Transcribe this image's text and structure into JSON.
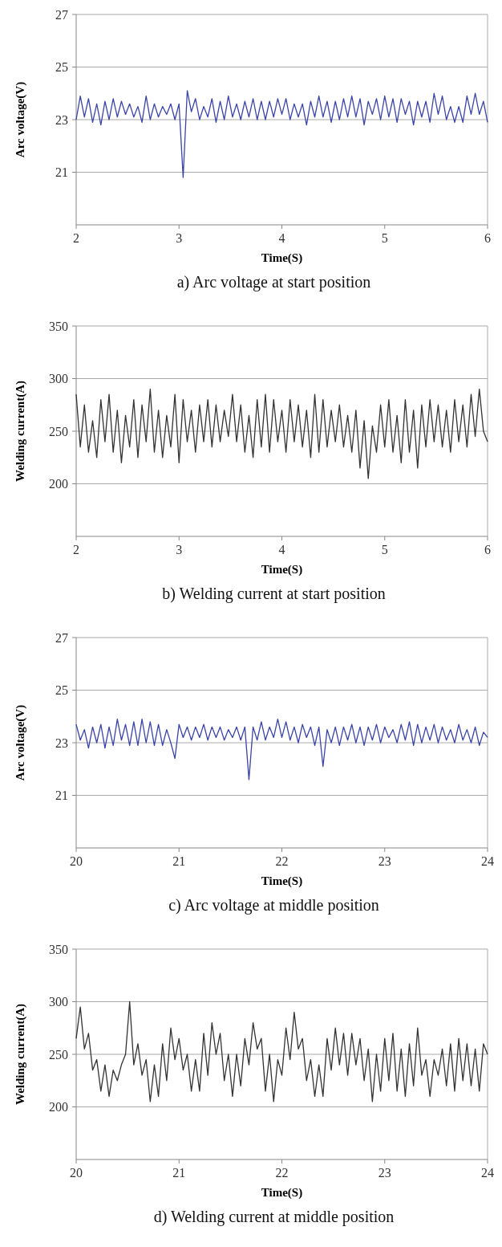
{
  "chart_data": [
    {
      "type": "line",
      "title": "a) Arc voltage at start position",
      "xlabel": "Time(S)",
      "ylabel": "Arc voltage(V)",
      "xlim": [
        2,
        6
      ],
      "xticks": [
        2,
        3,
        4,
        5,
        6
      ],
      "ylim": [
        19,
        27
      ],
      "yticks": [
        21,
        23,
        25,
        27
      ],
      "grid": "y",
      "marker": "none",
      "line_style": "solid",
      "x": [
        2,
        2.04,
        2.08,
        2.12,
        2.16,
        2.2,
        2.24,
        2.28,
        2.32,
        2.36,
        2.4,
        2.44,
        2.48,
        2.52,
        2.56,
        2.6,
        2.64,
        2.68,
        2.72,
        2.76,
        2.8,
        2.84,
        2.88,
        2.92,
        2.96,
        3,
        3.04,
        3.08,
        3.12,
        3.16,
        3.2,
        3.24,
        3.28,
        3.32,
        3.36,
        3.4,
        3.44,
        3.48,
        3.52,
        3.56,
        3.6,
        3.64,
        3.68,
        3.72,
        3.76,
        3.8,
        3.84,
        3.88,
        3.92,
        3.96,
        4,
        4.04,
        4.08,
        4.12,
        4.16,
        4.2,
        4.24,
        4.28,
        4.32,
        4.36,
        4.4,
        4.44,
        4.48,
        4.52,
        4.56,
        4.6,
        4.64,
        4.68,
        4.72,
        4.76,
        4.8,
        4.84,
        4.88,
        4.92,
        4.96,
        5,
        5.04,
        5.08,
        5.12,
        5.16,
        5.2,
        5.24,
        5.28,
        5.32,
        5.36,
        5.4,
        5.44,
        5.48,
        5.52,
        5.56,
        5.6,
        5.64,
        5.68,
        5.72,
        5.76,
        5.8,
        5.84,
        5.88,
        5.92,
        5.96,
        6
      ],
      "series": [
        {
          "color": "#3a44a8",
          "values": [
            23.0,
            23.9,
            23.1,
            23.8,
            22.9,
            23.6,
            22.8,
            23.7,
            23.0,
            23.8,
            23.1,
            23.7,
            23.2,
            23.6,
            23.1,
            23.5,
            22.9,
            23.9,
            23.0,
            23.6,
            23.1,
            23.5,
            23.2,
            23.6,
            23.0,
            23.6,
            20.8,
            24.1,
            23.3,
            23.8,
            23.0,
            23.5,
            23.1,
            23.8,
            22.9,
            23.7,
            23.0,
            23.9,
            23.1,
            23.6,
            23.0,
            23.7,
            23.1,
            23.8,
            23.0,
            23.7,
            23.0,
            23.7,
            23.1,
            23.8,
            23.2,
            23.8,
            23.0,
            23.6,
            23.1,
            23.6,
            22.8,
            23.7,
            23.1,
            23.9,
            23.1,
            23.7,
            22.9,
            23.7,
            23.0,
            23.8,
            23.1,
            23.9,
            23.1,
            23.8,
            22.8,
            23.7,
            23.2,
            23.8,
            23.0,
            23.9,
            23.1,
            23.8,
            22.9,
            23.8,
            23.2,
            23.7,
            22.8,
            23.7,
            23.1,
            23.7,
            22.9,
            24.0,
            23.2,
            23.9,
            23.0,
            23.5,
            22.9,
            23.5,
            22.9,
            23.9,
            23.2,
            24.0,
            23.2,
            23.7,
            22.9
          ]
        }
      ]
    },
    {
      "type": "line",
      "title": "b) Welding current at start position",
      "xlabel": "Time(S)",
      "ylabel": "Welding current(A)",
      "xlim": [
        2,
        6
      ],
      "xticks": [
        2,
        3,
        4,
        5,
        6
      ],
      "ylim": [
        150,
        350
      ],
      "yticks": [
        200,
        250,
        300,
        350
      ],
      "grid": "y",
      "marker": "none",
      "line_style": "solid",
      "x": [
        2,
        2.04,
        2.08,
        2.12,
        2.16,
        2.2,
        2.24,
        2.28,
        2.32,
        2.36,
        2.4,
        2.44,
        2.48,
        2.52,
        2.56,
        2.6,
        2.64,
        2.68,
        2.72,
        2.76,
        2.8,
        2.84,
        2.88,
        2.92,
        2.96,
        3,
        3.04,
        3.08,
        3.12,
        3.16,
        3.2,
        3.24,
        3.28,
        3.32,
        3.36,
        3.4,
        3.44,
        3.48,
        3.52,
        3.56,
        3.6,
        3.64,
        3.68,
        3.72,
        3.76,
        3.8,
        3.84,
        3.88,
        3.92,
        3.96,
        4,
        4.04,
        4.08,
        4.12,
        4.16,
        4.2,
        4.24,
        4.28,
        4.32,
        4.36,
        4.4,
        4.44,
        4.48,
        4.52,
        4.56,
        4.6,
        4.64,
        4.68,
        4.72,
        4.76,
        4.8,
        4.84,
        4.88,
        4.92,
        4.96,
        5,
        5.04,
        5.08,
        5.12,
        5.16,
        5.2,
        5.24,
        5.28,
        5.32,
        5.36,
        5.4,
        5.44,
        5.48,
        5.52,
        5.56,
        5.6,
        5.64,
        5.68,
        5.72,
        5.76,
        5.8,
        5.84,
        5.88,
        5.92,
        5.96,
        6
      ],
      "series": [
        {
          "color": "#333333",
          "values": [
            285,
            235,
            275,
            230,
            260,
            225,
            280,
            240,
            285,
            230,
            270,
            220,
            265,
            235,
            280,
            225,
            275,
            240,
            290,
            230,
            270,
            225,
            265,
            235,
            285,
            220,
            280,
            240,
            270,
            230,
            275,
            240,
            280,
            235,
            275,
            240,
            270,
            245,
            285,
            240,
            275,
            230,
            265,
            225,
            280,
            235,
            285,
            230,
            280,
            240,
            270,
            230,
            280,
            240,
            275,
            235,
            270,
            225,
            285,
            230,
            280,
            235,
            270,
            240,
            275,
            235,
            265,
            230,
            270,
            215,
            260,
            205,
            255,
            230,
            275,
            235,
            280,
            230,
            265,
            220,
            280,
            230,
            270,
            215,
            275,
            235,
            280,
            240,
            275,
            235,
            270,
            230,
            280,
            240,
            275,
            235,
            285,
            245,
            290,
            250,
            240
          ]
        }
      ]
    },
    {
      "type": "line",
      "title": "c) Arc voltage at middle position",
      "xlabel": "Time(S)",
      "ylabel": "Arc voltage(V)",
      "xlim": [
        20,
        24
      ],
      "xticks": [
        20,
        21,
        22,
        23,
        24
      ],
      "ylim": [
        19,
        27
      ],
      "yticks": [
        21,
        23,
        25,
        27
      ],
      "grid": "y",
      "marker": "none",
      "line_style": "solid",
      "x": [
        20,
        20.04,
        20.08,
        20.12,
        20.16,
        20.2,
        20.24,
        20.28,
        20.32,
        20.36,
        20.4,
        20.44,
        20.48,
        20.52,
        20.56,
        20.6,
        20.64,
        20.68,
        20.72,
        20.76,
        20.8,
        20.84,
        20.88,
        20.92,
        20.96,
        21,
        21.04,
        21.08,
        21.12,
        21.16,
        21.2,
        21.24,
        21.28,
        21.32,
        21.36,
        21.4,
        21.44,
        21.48,
        21.52,
        21.56,
        21.6,
        21.64,
        21.68,
        21.72,
        21.76,
        21.8,
        21.84,
        21.88,
        21.92,
        21.96,
        22,
        22.04,
        22.08,
        22.12,
        22.16,
        22.2,
        22.24,
        22.28,
        22.32,
        22.36,
        22.4,
        22.44,
        22.48,
        22.52,
        22.56,
        22.6,
        22.64,
        22.68,
        22.72,
        22.76,
        22.8,
        22.84,
        22.88,
        22.92,
        22.96,
        23,
        23.04,
        23.08,
        23.12,
        23.16,
        23.2,
        23.24,
        23.28,
        23.32,
        23.36,
        23.4,
        23.44,
        23.48,
        23.52,
        23.56,
        23.6,
        23.64,
        23.68,
        23.72,
        23.76,
        23.8,
        23.84,
        23.88,
        23.92,
        23.96,
        24
      ],
      "series": [
        {
          "color": "#3a44a8",
          "values": [
            23.7,
            23.1,
            23.5,
            22.8,
            23.6,
            23.0,
            23.7,
            22.8,
            23.6,
            22.9,
            23.9,
            23.1,
            23.7,
            22.9,
            23.8,
            22.9,
            23.9,
            23.0,
            23.8,
            22.9,
            23.7,
            22.9,
            23.5,
            23.0,
            22.4,
            23.7,
            23.2,
            23.6,
            23.1,
            23.6,
            23.2,
            23.7,
            23.1,
            23.6,
            23.2,
            23.6,
            23.1,
            23.5,
            23.2,
            23.6,
            23.1,
            23.6,
            21.6,
            23.6,
            23.1,
            23.8,
            23.1,
            23.6,
            23.2,
            23.9,
            23.2,
            23.8,
            23.1,
            23.6,
            23.0,
            23.7,
            23.2,
            23.6,
            22.9,
            23.6,
            22.1,
            23.5,
            23.0,
            23.6,
            22.9,
            23.6,
            23.1,
            23.7,
            23.0,
            23.6,
            22.9,
            23.6,
            23.1,
            23.7,
            23.0,
            23.6,
            23.2,
            23.5,
            23.0,
            23.7,
            23.1,
            23.8,
            22.9,
            23.7,
            23.0,
            23.6,
            23.1,
            23.7,
            23.0,
            23.6,
            23.1,
            23.5,
            23.0,
            23.7,
            23.1,
            23.5,
            23.0,
            23.6,
            22.9,
            23.4,
            23.2
          ]
        }
      ]
    },
    {
      "type": "line",
      "title": "d) Welding current at middle position",
      "xlabel": "Time(S)",
      "ylabel": "Welding current(A)",
      "xlim": [
        20,
        24
      ],
      "xticks": [
        20,
        21,
        22,
        23,
        24
      ],
      "ylim": [
        150,
        350
      ],
      "yticks": [
        200,
        250,
        300,
        350
      ],
      "grid": "y",
      "marker": "none",
      "line_style": "solid",
      "x": [
        20,
        20.04,
        20.08,
        20.12,
        20.16,
        20.2,
        20.24,
        20.28,
        20.32,
        20.36,
        20.4,
        20.44,
        20.48,
        20.52,
        20.56,
        20.6,
        20.64,
        20.68,
        20.72,
        20.76,
        20.8,
        20.84,
        20.88,
        20.92,
        20.96,
        21,
        21.04,
        21.08,
        21.12,
        21.16,
        21.2,
        21.24,
        21.28,
        21.32,
        21.36,
        21.4,
        21.44,
        21.48,
        21.52,
        21.56,
        21.6,
        21.64,
        21.68,
        21.72,
        21.76,
        21.8,
        21.84,
        21.88,
        21.92,
        21.96,
        22,
        22.04,
        22.08,
        22.12,
        22.16,
        22.2,
        22.24,
        22.28,
        22.32,
        22.36,
        22.4,
        22.44,
        22.48,
        22.52,
        22.56,
        22.6,
        22.64,
        22.68,
        22.72,
        22.76,
        22.8,
        22.84,
        22.88,
        22.92,
        22.96,
        23,
        23.04,
        23.08,
        23.12,
        23.16,
        23.2,
        23.24,
        23.28,
        23.32,
        23.36,
        23.4,
        23.44,
        23.48,
        23.52,
        23.56,
        23.6,
        23.64,
        23.68,
        23.72,
        23.76,
        23.8,
        23.84,
        23.88,
        23.92,
        23.96,
        24
      ],
      "series": [
        {
          "color": "#333333",
          "values": [
            265,
            295,
            255,
            270,
            235,
            245,
            215,
            240,
            210,
            235,
            225,
            240,
            250,
            300,
            240,
            260,
            230,
            245,
            205,
            240,
            210,
            260,
            225,
            275,
            245,
            265,
            235,
            250,
            215,
            245,
            215,
            270,
            230,
            280,
            250,
            270,
            225,
            250,
            210,
            250,
            220,
            265,
            240,
            280,
            255,
            265,
            215,
            250,
            205,
            245,
            230,
            275,
            245,
            290,
            255,
            265,
            225,
            245,
            210,
            240,
            210,
            265,
            235,
            275,
            240,
            270,
            230,
            270,
            240,
            265,
            225,
            255,
            205,
            250,
            215,
            265,
            225,
            270,
            215,
            255,
            210,
            260,
            220,
            275,
            230,
            245,
            210,
            245,
            230,
            255,
            220,
            260,
            215,
            265,
            225,
            260,
            220,
            255,
            215,
            260,
            250
          ]
        }
      ]
    }
  ]
}
